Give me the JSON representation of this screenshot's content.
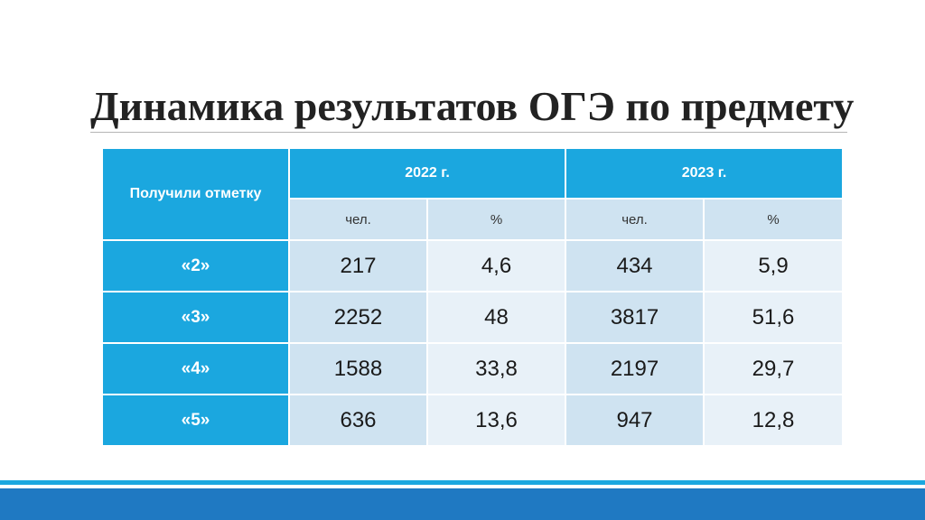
{
  "title": "Динамика результатов ОГЭ по предмету",
  "table": {
    "corner_label": "Получили отметку",
    "years": [
      "2022 г.",
      "2023 г."
    ],
    "sub_headers": [
      "чел.",
      "%",
      "чел.",
      "%"
    ],
    "rows": [
      {
        "grade": "«2»",
        "values": [
          "217",
          "4,6",
          "434",
          "5,9"
        ]
      },
      {
        "grade": "«3»",
        "values": [
          "2252",
          "48",
          "3817",
          "51,6"
        ]
      },
      {
        "grade": "«4»",
        "values": [
          "1588",
          "33,8",
          "2197",
          "29,7"
        ]
      },
      {
        "grade": "«5»",
        "values": [
          "636",
          "13,6",
          "947",
          "12,8"
        ]
      }
    ]
  },
  "colors": {
    "header_blue": "#1ba7df",
    "cell_dark": "#cfe3f1",
    "cell_light": "#e8f1f8",
    "footer_blue": "#1f79c2"
  }
}
